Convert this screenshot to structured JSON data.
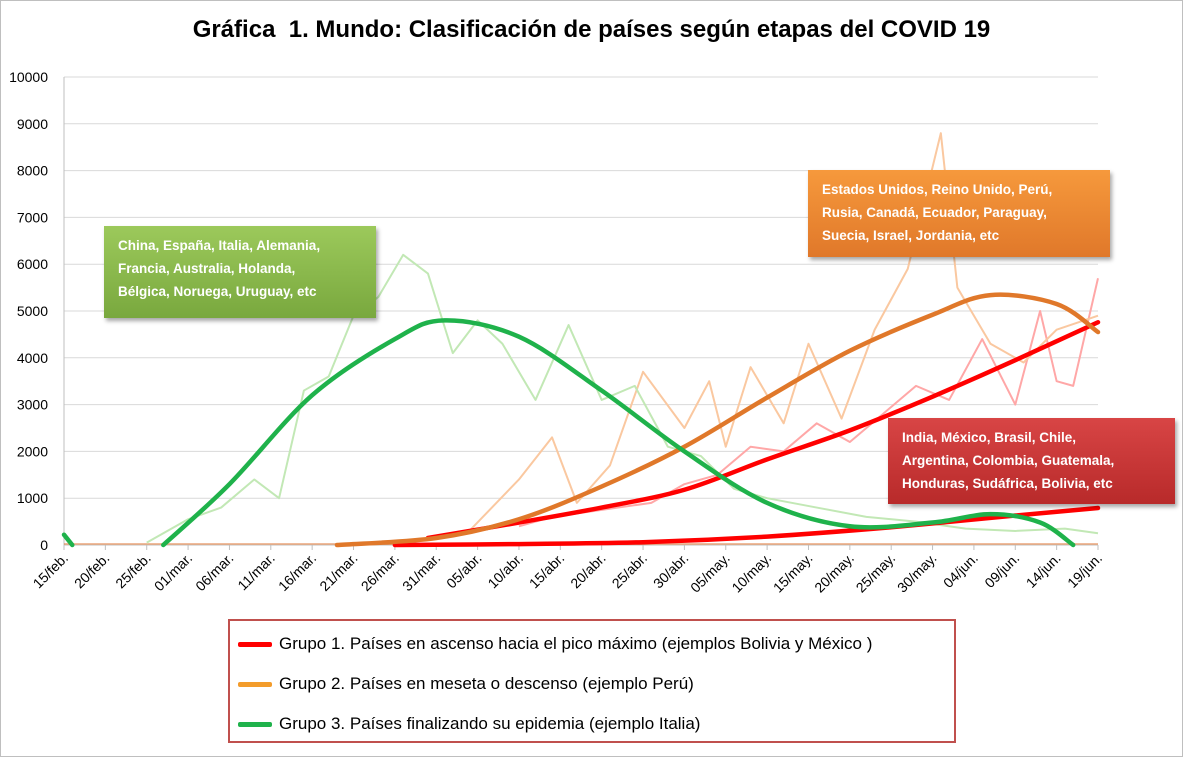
{
  "chart_data": {
    "type": "line",
    "title": "Gráfica  1. Mundo: Clasificación de países según etapas del COVID 19",
    "xlabel": "",
    "ylabel": "",
    "ylim": [
      0,
      10000
    ],
    "yticks": [
      0,
      1000,
      2000,
      3000,
      4000,
      5000,
      6000,
      7000,
      8000,
      9000,
      10000
    ],
    "x_start": "2020-02-15",
    "x_end": "2020-06-19",
    "xticks": [
      "15/feb.",
      "20/feb.",
      "25/feb.",
      "01/mar.",
      "06/mar.",
      "11/mar.",
      "16/mar.",
      "21/mar.",
      "26/mar.",
      "31/mar.",
      "05/abr.",
      "10/abr.",
      "15/abr.",
      "20/abr.",
      "25/abr.",
      "30/abr.",
      "05/may.",
      "10/may.",
      "15/may.",
      "20/may.",
      "25/may.",
      "30/may.",
      "04/jun.",
      "09/jun.",
      "14/jun.",
      "19/jun."
    ],
    "grid": true,
    "legend_position": "bottom",
    "legend": [
      {
        "label": "Grupo 1. Países en ascenso hacia el pico máximo (ejemplos Bolivia y México )",
        "color": "#ff0000"
      },
      {
        "label": "Grupo 2. Países en meseta o descenso (ejemplo Perú)",
        "color": "#f39c2b"
      },
      {
        "label": "Grupo 3. Países finalizando su epidemia (ejemplo Italia)",
        "color": "#1fb24b"
      }
    ],
    "series": [
      {
        "group": "Grupo 1 (México)",
        "kind": "trend",
        "color": "#ff0000",
        "x": [
          "2020-03-30",
          "2020-04-10",
          "2020-04-20",
          "2020-04-30",
          "2020-05-10",
          "2020-05-20",
          "2020-05-30",
          "2020-06-09",
          "2020-06-19"
        ],
        "values": [
          150,
          480,
          800,
          1180,
          1830,
          2450,
          3170,
          3950,
          4760
        ]
      },
      {
        "group": "Grupo 1 (Bolivia)",
        "kind": "trend",
        "color": "#ff0000",
        "x": [
          "2020-03-26",
          "2020-04-10",
          "2020-04-25",
          "2020-05-10",
          "2020-05-25",
          "2020-06-09",
          "2020-06-19"
        ],
        "values": [
          0,
          20,
          60,
          180,
          380,
          630,
          790
        ]
      },
      {
        "group": "Grupo 2 (Perú)",
        "kind": "trend",
        "color": "#e0782a",
        "x": [
          "2020-03-19",
          "2020-03-31",
          "2020-04-10",
          "2020-04-20",
          "2020-04-30",
          "2020-05-10",
          "2020-05-20",
          "2020-05-30",
          "2020-06-06",
          "2020-06-14",
          "2020-06-19"
        ],
        "values": [
          0,
          150,
          550,
          1250,
          2100,
          3150,
          4150,
          4920,
          5340,
          5150,
          4550
        ]
      },
      {
        "group": "Grupo 3 (Italia)",
        "kind": "trend",
        "color": "#1fb24b",
        "x": [
          "2020-02-27",
          "2020-03-06",
          "2020-03-16",
          "2020-03-26",
          "2020-04-01",
          "2020-04-10",
          "2020-04-20",
          "2020-04-30",
          "2020-05-10",
          "2020-05-20",
          "2020-05-30",
          "2020-06-06",
          "2020-06-12",
          "2020-06-16"
        ],
        "values": [
          0,
          1300,
          3200,
          4400,
          4800,
          4450,
          3300,
          2000,
          900,
          400,
          480,
          660,
          480,
          0
        ]
      },
      {
        "group": "Grupo 3 (Bolivia)",
        "kind": "trend",
        "color": "#1fb24b",
        "x": [
          "2020-02-15",
          "2020-02-16"
        ],
        "values": [
          220,
          0
        ]
      },
      {
        "group": "Grupo 1 (México) diario",
        "kind": "daily",
        "color": "#ffa7a7",
        "x": [
          "2020-04-10",
          "2020-04-14",
          "2020-04-18",
          "2020-04-22",
          "2020-04-26",
          "2020-04-30",
          "2020-05-04",
          "2020-05-08",
          "2020-05-12",
          "2020-05-16",
          "2020-05-20",
          "2020-05-24",
          "2020-05-28",
          "2020-06-01",
          "2020-06-05",
          "2020-06-09",
          "2020-06-12",
          "2020-06-14",
          "2020-06-16",
          "2020-06-19"
        ],
        "values": [
          400,
          600,
          700,
          800,
          900,
          1300,
          1500,
          2100,
          2000,
          2600,
          2200,
          2800,
          3400,
          3100,
          4400,
          3000,
          5000,
          3500,
          3400,
          5700
        ]
      },
      {
        "group": "Grupo 2 (Perú) diario",
        "kind": "daily",
        "color": "#fac8a0",
        "x": [
          "2020-04-04",
          "2020-04-10",
          "2020-04-14",
          "2020-04-17",
          "2020-04-21",
          "2020-04-25",
          "2020-04-30",
          "2020-05-03",
          "2020-05-05",
          "2020-05-08",
          "2020-05-12",
          "2020-05-15",
          "2020-05-19",
          "2020-05-23",
          "2020-05-27",
          "2020-05-31",
          "2020-06-02",
          "2020-06-06",
          "2020-06-10",
          "2020-06-14",
          "2020-06-19"
        ],
        "values": [
          300,
          1400,
          2300,
          900,
          1700,
          3700,
          2500,
          3500,
          2100,
          3800,
          2600,
          4300,
          2700,
          4600,
          5900,
          8800,
          5500,
          4300,
          3900,
          4600,
          4900
        ]
      },
      {
        "group": "Grupo 3 (Italia) diario",
        "kind": "daily",
        "color": "#c2e8b5",
        "x": [
          "2020-02-25",
          "2020-03-01",
          "2020-03-05",
          "2020-03-09",
          "2020-03-12",
          "2020-03-15",
          "2020-03-18",
          "2020-03-21",
          "2020-03-24",
          "2020-03-27",
          "2020-03-30",
          "2020-04-02",
          "2020-04-05",
          "2020-04-08",
          "2020-04-12",
          "2020-04-16",
          "2020-04-20",
          "2020-04-24",
          "2020-04-28",
          "2020-05-02",
          "2020-05-06",
          "2020-05-10",
          "2020-05-16",
          "2020-05-22",
          "2020-05-28",
          "2020-06-03",
          "2020-06-09",
          "2020-06-15",
          "2020-06-19"
        ],
        "values": [
          50,
          550,
          800,
          1400,
          1000,
          3300,
          3600,
          4900,
          5300,
          6200,
          5800,
          4100,
          4800,
          4300,
          3100,
          4700,
          3100,
          3400,
          2100,
          1900,
          1200,
          1000,
          800,
          600,
          500,
          350,
          300,
          350,
          250
        ]
      }
    ],
    "annotations": [
      {
        "id": "green",
        "lines": [
          "China, España, Italia, Alemania,",
          "Francia, Australia, Holanda,",
          "Bélgica, Noruega, Uruguay, etc"
        ]
      },
      {
        "id": "orange",
        "lines": [
          "Estados Unidos, Reino Unido, Perú,",
          "Rusia, Canadá,  Ecuador, Paraguay,",
          "Suecia, Israel, Jordania, etc"
        ]
      },
      {
        "id": "red",
        "lines": [
          "India, México, Brasil,  Chile,",
          "Argentina, Colombia, Guatemala,",
          "Honduras, Sudáfrica, Bolivia, etc"
        ]
      }
    ]
  }
}
